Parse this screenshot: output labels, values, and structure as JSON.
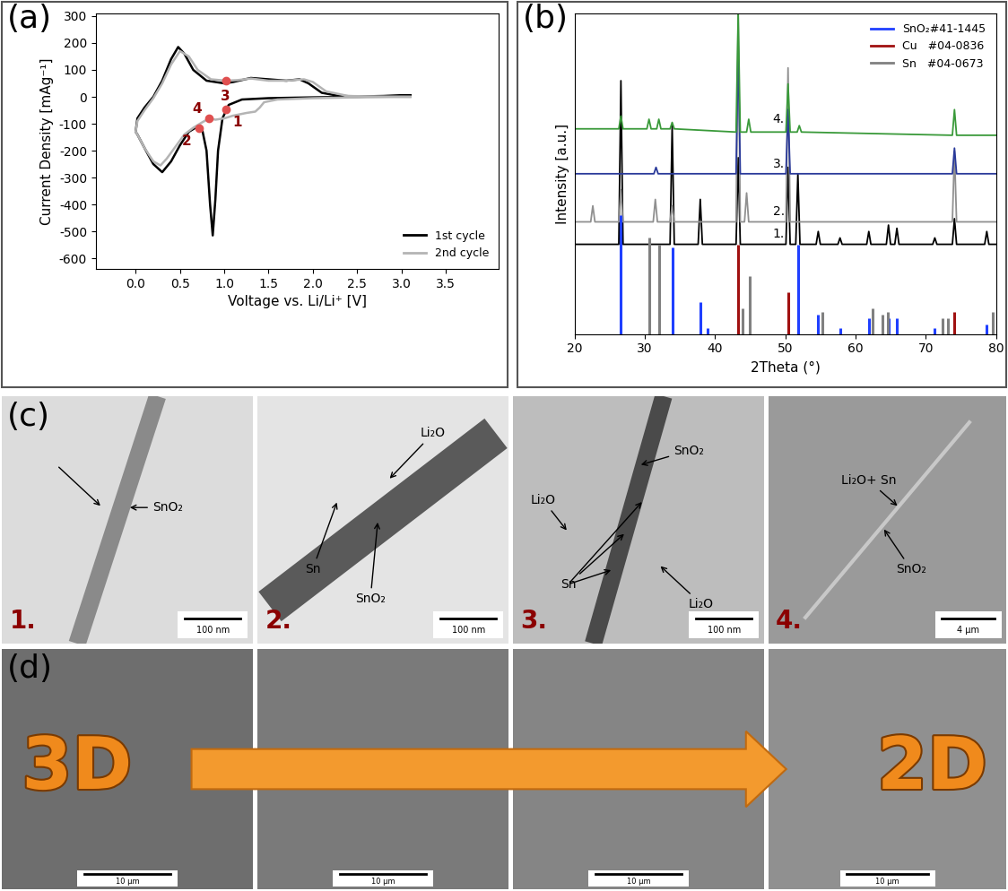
{
  "chart_data": [
    {
      "type": "line",
      "title": "(a)",
      "xlabel": "Voltage vs. Li/Li⁺ [V]",
      "ylabel": "Current Density [mAg⁻¹]",
      "xlim": [
        -0.45,
        4.1
      ],
      "xticks": [
        0.0,
        0.5,
        1.0,
        1.5,
        2.0,
        2.5,
        3.0,
        3.5
      ],
      "ylim": [
        -640,
        310
      ],
      "yticks": [
        -600,
        -500,
        -400,
        -300,
        -200,
        -100,
        0,
        100,
        200,
        300
      ],
      "legend": "lower right",
      "series": [
        {
          "name": "1st cycle",
          "color": "#000000",
          "x": [
            3.1,
            2.5,
            2.0,
            1.5,
            1.2,
            1.05,
            0.98,
            0.93,
            0.9,
            0.87,
            0.84,
            0.8,
            0.75,
            0.7,
            0.6,
            0.5,
            0.4,
            0.3,
            0.2,
            0.1,
            0.02,
            0.0,
            0.02,
            0.1,
            0.2,
            0.3,
            0.4,
            0.48,
            0.55,
            0.65,
            0.8,
            1.0,
            1.1,
            1.3,
            1.5,
            1.7,
            1.85,
            1.95,
            2.1,
            2.3,
            2.6,
            3.1
          ],
          "values": [
            5,
            0,
            -2,
            -5,
            -10,
            -30,
            -80,
            -200,
            -380,
            -515,
            -400,
            -200,
            -120,
            -110,
            -130,
            -180,
            -240,
            -280,
            -250,
            -190,
            -140,
            -130,
            -80,
            -40,
            0,
            60,
            140,
            185,
            160,
            100,
            60,
            50,
            55,
            70,
            65,
            60,
            65,
            50,
            15,
            3,
            2,
            5
          ]
        },
        {
          "name": "2nd cycle",
          "color": "#b4b4b4",
          "x": [
            3.1,
            2.5,
            2.0,
            1.6,
            1.45,
            1.4,
            1.35,
            1.25,
            1.1,
            1.0,
            0.9,
            0.83,
            0.75,
            0.65,
            0.55,
            0.45,
            0.35,
            0.28,
            0.2,
            0.1,
            0.02,
            0.0,
            0.02,
            0.1,
            0.2,
            0.3,
            0.4,
            0.5,
            0.6,
            0.7,
            0.85,
            1.02,
            1.15,
            1.3,
            1.5,
            1.7,
            1.9,
            2.0,
            2.15,
            2.4,
            3.1
          ],
          "values": [
            0,
            -2,
            -5,
            -10,
            -20,
            -40,
            -55,
            -60,
            -70,
            -80,
            -85,
            -80,
            -95,
            -115,
            -140,
            -185,
            -230,
            -255,
            -240,
            -190,
            -140,
            -130,
            -90,
            -50,
            -5,
            50,
            120,
            170,
            150,
            100,
            65,
            60,
            62,
            68,
            60,
            60,
            65,
            55,
            20,
            3,
            0
          ]
        }
      ],
      "annotations": [
        {
          "text": "1",
          "x": 1.02,
          "y": -45
        },
        {
          "text": "2",
          "x": 0.72,
          "y": -115
        },
        {
          "text": "3",
          "x": 1.02,
          "y": 60
        },
        {
          "text": "4",
          "x": 0.83,
          "y": -80
        }
      ]
    },
    {
      "type": "line",
      "title": "(b)",
      "xlabel": "2Theta (°)",
      "ylabel": "Intensity [a.u.]",
      "xlim": [
        20,
        80
      ],
      "xticks": [
        20,
        30,
        40,
        50,
        60,
        70,
        80
      ],
      "ylim": [
        0,
        100
      ],
      "tick_labels": "x",
      "legend": "upper right",
      "series": [
        {
          "name": "1.",
          "type": "line",
          "color": "#000000",
          "x": [
            20,
            26.3,
            26.6,
            26.9,
            33.6,
            33.9,
            34.2,
            37.6,
            37.9,
            38.2,
            43.0,
            43.3,
            43.6,
            50.1,
            50.4,
            50.7,
            51.5,
            51.8,
            52.1,
            54.4,
            54.7,
            55.0,
            57.5,
            57.8,
            58.1,
            61.6,
            61.9,
            62.2,
            64.4,
            64.7,
            65.0,
            65.6,
            65.9,
            66.2,
            71.0,
            71.3,
            71.6,
            73.8,
            74.1,
            74.4,
            78.4,
            78.7,
            79.0,
            80
          ],
          "values": [
            28,
            28,
            79,
            28,
            28,
            65,
            28,
            28,
            42,
            28,
            28,
            55,
            28,
            28,
            52,
            28,
            28,
            50,
            28,
            28,
            32,
            28,
            28,
            30,
            28,
            28,
            32,
            28,
            28,
            34,
            28,
            28,
            33,
            28,
            28,
            30,
            28,
            28,
            36,
            28,
            28,
            32,
            28,
            28
          ]
        },
        {
          "name": "2.",
          "type": "line",
          "color": "#909090",
          "x": [
            20,
            22.3,
            22.6,
            22.9,
            26.3,
            26.6,
            26.9,
            31.2,
            31.5,
            31.8,
            33.6,
            33.9,
            34.2,
            43.0,
            43.3,
            43.6,
            44.2,
            44.5,
            44.8,
            50.1,
            50.4,
            50.7,
            73.8,
            74.1,
            74.4,
            80
          ],
          "values": [
            35,
            35,
            40,
            35,
            35,
            45,
            35,
            35,
            42,
            35,
            35,
            40,
            35,
            35,
            100,
            35,
            35,
            44,
            35,
            35,
            83,
            35,
            35,
            57,
            35,
            35
          ]
        },
        {
          "name": "3.",
          "type": "line",
          "color": "#2a3a9a",
          "x": [
            20,
            31.3,
            31.6,
            31.9,
            43.0,
            43.3,
            43.6,
            50.1,
            50.4,
            50.7,
            73.8,
            74.1,
            74.4,
            80
          ],
          "values": [
            50,
            50,
            52,
            50,
            50,
            90,
            50,
            50,
            70,
            50,
            50,
            58,
            50,
            50
          ]
        },
        {
          "name": "4.",
          "type": "line",
          "color": "#3a9a3a",
          "x": [
            20,
            26.3,
            26.6,
            26.9,
            30.3,
            30.6,
            30.9,
            31.7,
            32.0,
            32.3,
            33.6,
            33.9,
            34.2,
            43.0,
            43.3,
            43.6,
            44.5,
            44.8,
            45.1,
            50.1,
            50.4,
            50.7,
            51.7,
            52.0,
            52.3,
            73.8,
            74.1,
            74.4,
            80
          ],
          "values": [
            64,
            64,
            68,
            64,
            64,
            67,
            64,
            64,
            67,
            64,
            64,
            66,
            64,
            63,
            100,
            63,
            63,
            67,
            63,
            63,
            78,
            63,
            63,
            65,
            63,
            62,
            70,
            62,
            62
          ]
        },
        {
          "name": "SnO₂#41-1445",
          "type": "stick",
          "color": "#1f3fff",
          "x": [
            26.6,
            33.9,
            37.9,
            38.9,
            51.8,
            54.7,
            57.8,
            61.9,
            64.7,
            65.9,
            71.3,
            78.7
          ],
          "values": [
            37,
            27,
            10,
            2,
            28,
            6,
            2,
            5,
            5,
            5,
            2,
            3
          ]
        },
        {
          "name": "Cu   #04-0836",
          "type": "stick",
          "color": "#a01010",
          "x": [
            43.3,
            50.4,
            74.1
          ],
          "values": [
            28,
            13,
            7
          ]
        },
        {
          "name": "Sn   #04-0673",
          "type": "stick",
          "color": "#808080",
          "x": [
            30.6,
            32.0,
            43.9,
            44.9,
            55.3,
            62.5,
            63.8,
            64.6,
            72.4,
            73.2,
            79.5
          ],
          "values": [
            30,
            28,
            8,
            18,
            7,
            8,
            6,
            7,
            5,
            5,
            7
          ]
        }
      ]
    }
  ],
  "micrographs": {
    "c": {
      "label": "(c)",
      "images": [
        {
          "number": "1.",
          "labels": [
            "SnO₂"
          ],
          "scale_bar": "100 nm"
        },
        {
          "number": "2.",
          "labels": [
            "Li₂O",
            "Sn",
            "SnO₂"
          ],
          "scale_bar": "100 nm"
        },
        {
          "number": "3.",
          "labels": [
            "SnO₂",
            "Li₂O",
            "Sn",
            "Li₂O"
          ],
          "scale_bar": "100 nm"
        },
        {
          "number": "4.",
          "labels": [
            "Li₂O+ Sn",
            "SnO₂"
          ],
          "scale_bar": "4 µm"
        }
      ]
    },
    "d": {
      "label": "(d)",
      "start": "3D",
      "end": "2D",
      "scale_bars": [
        "10 µm",
        "10 µm",
        "10 µm",
        "10 µm"
      ]
    }
  }
}
